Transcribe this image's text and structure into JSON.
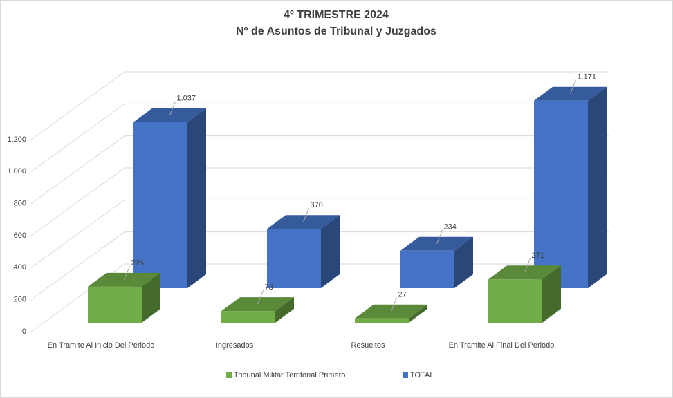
{
  "chart_data": {
    "type": "bar3d",
    "title": "4º TRIMESTRE 2024",
    "subtitle": "Nº de Asuntos de Tribunal y Juzgados",
    "categories": [
      "En Tramite Al Inicio Del Periodo",
      "Ingresados",
      "Resueltos",
      "En Tramite Al Final Del Periodo"
    ],
    "series": [
      {
        "name": "Tribunal Militar Territorial Primero",
        "color": "#70ad47",
        "values": [
          225,
          73,
          27,
          271
        ]
      },
      {
        "name": "TOTAL",
        "color": "#4472c4",
        "values": [
          1037,
          370,
          234,
          1171
        ],
        "value_labels": [
          "1.037",
          "370",
          "234",
          "1.171"
        ]
      }
    ],
    "ylim": [
      0,
      1200
    ],
    "yticks": [
      0,
      200,
      400,
      600,
      800,
      {
        "value": 1000,
        "label": "1.000"
      },
      {
        "value": 1200,
        "label": "1.200"
      }
    ],
    "grid": true,
    "legend": "bottom"
  }
}
